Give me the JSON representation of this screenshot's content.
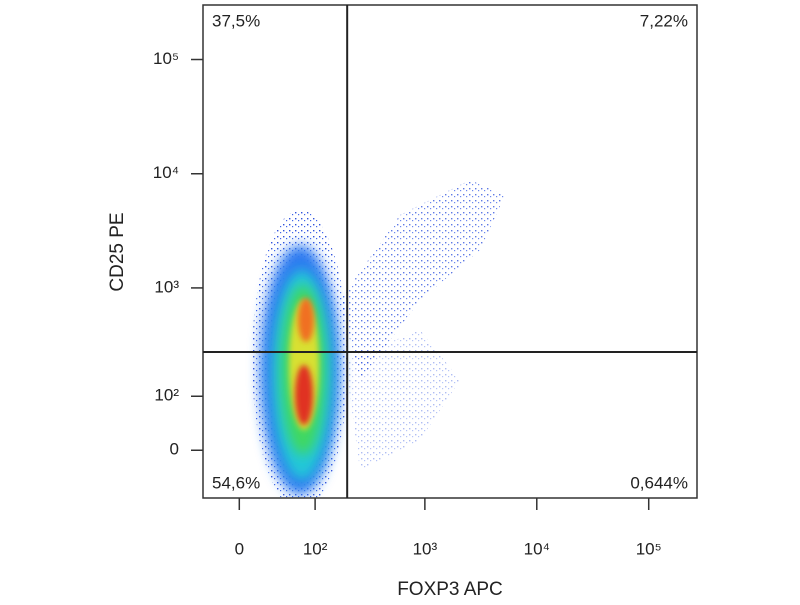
{
  "chart_data": {
    "type": "scatter",
    "x_label": "FOXP3 APC",
    "y_label": "CD25 PE",
    "scale": "biexponential",
    "xlim": [
      -36,
      270000
    ],
    "ylim": [
      -85,
      300000
    ],
    "xticks": [
      0,
      {
        "value": 100,
        "label": "10²"
      },
      {
        "value": 1000,
        "label": "10³"
      },
      {
        "value": 10000,
        "label": "10⁴"
      },
      {
        "value": 100000,
        "label": "10⁵"
      }
    ],
    "yticks": [
      0,
      {
        "value": 100,
        "label": "10²"
      },
      {
        "value": 1000,
        "label": "10³"
      },
      {
        "value": 10000,
        "label": "10⁴"
      },
      {
        "value": 100000,
        "label": "10⁵"
      }
    ],
    "gates": {
      "x": 200,
      "y": 270
    },
    "quadrant_values": [
      37.5,
      7.22,
      54.6,
      0.644
    ],
    "quadrant_value_labels": [
      "37,5%",
      "7,22%",
      "54,6%",
      "0,644%"
    ],
    "grid": false
  }
}
